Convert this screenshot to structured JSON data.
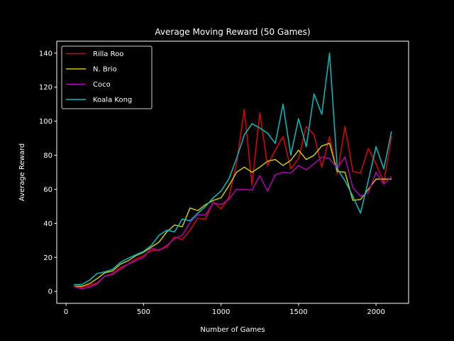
{
  "chart_data": {
    "type": "line",
    "title": "Average Moving Reward (50 Games)",
    "xlabel": "Number of Games",
    "ylabel": "Average Reward",
    "xlim": [
      -60,
      2210
    ],
    "ylim": [
      -7,
      147
    ],
    "xticks": [
      0,
      500,
      1000,
      1500,
      2000
    ],
    "yticks": [
      0,
      20,
      40,
      60,
      80,
      100,
      120,
      140
    ],
    "grid": false,
    "legend_position": "top-left",
    "x": [
      50,
      100,
      150,
      200,
      250,
      300,
      350,
      400,
      450,
      500,
      550,
      600,
      650,
      700,
      750,
      800,
      850,
      900,
      950,
      1000,
      1050,
      1100,
      1150,
      1200,
      1250,
      1300,
      1350,
      1400,
      1450,
      1500,
      1550,
      1600,
      1650,
      1700,
      1750,
      1800,
      1850,
      1900,
      1950,
      2000,
      2050,
      2100
    ],
    "series": [
      {
        "name": "Rilla Roo",
        "color": "#e00000",
        "values": [
          3,
          2.5,
          3.5,
          5,
          9,
          10.5,
          14,
          16,
          19,
          21,
          24,
          24.5,
          26,
          32,
          30.5,
          36,
          43,
          42.5,
          52.5,
          48.5,
          55,
          75,
          107,
          62.5,
          105,
          74,
          83,
          91,
          72,
          78,
          97,
          92,
          73,
          91,
          69,
          97,
          70.5,
          69.5,
          84,
          75,
          64,
          91
        ]
      },
      {
        "name": "N. Brio",
        "color": "#c8c800",
        "values": [
          3,
          3,
          4.5,
          7.5,
          11,
          12,
          16,
          18,
          21,
          23,
          26,
          29,
          35,
          39,
          38,
          49,
          47.5,
          51,
          53.5,
          55,
          62,
          70,
          73,
          70,
          73,
          76.5,
          77.5,
          74,
          77,
          83,
          77.5,
          80,
          85.5,
          87,
          70.5,
          70,
          53.5,
          54,
          60,
          66,
          66,
          66
        ]
      },
      {
        "name": "Coco",
        "color": "#b000b0",
        "values": [
          3,
          1.5,
          2.5,
          4.5,
          9,
          10,
          13,
          16,
          18,
          20,
          25.5,
          24,
          27,
          31,
          33,
          40.5,
          45,
          45,
          52,
          51,
          54,
          60,
          60,
          59.5,
          68,
          59,
          68.5,
          70,
          69.5,
          74,
          71.5,
          75,
          79,
          78,
          72.5,
          79,
          61,
          56,
          58,
          70,
          63,
          67.5
        ]
      },
      {
        "name": "Koala Kong",
        "color": "#00c0c0",
        "values": [
          4,
          4,
          6.5,
          10.5,
          11.5,
          13,
          17,
          19.5,
          21.5,
          23.5,
          27,
          33,
          36,
          35,
          42.5,
          41.5,
          46,
          50,
          55,
          59,
          66,
          78,
          92,
          98.5,
          96,
          93,
          87,
          110,
          80,
          101.5,
          85,
          116,
          104,
          140,
          72,
          65,
          56,
          46,
          65,
          85,
          72,
          94
        ]
      }
    ]
  }
}
